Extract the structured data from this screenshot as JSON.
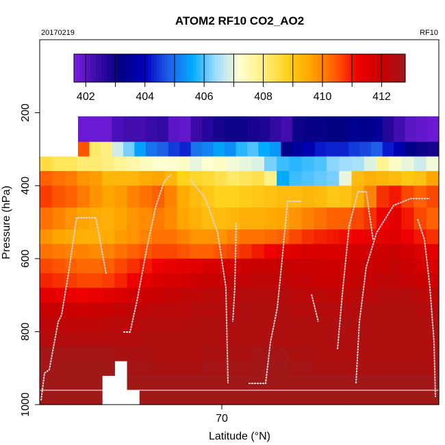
{
  "chart_data": {
    "type": "heatmap",
    "title": "ATOM2 RF10 CO2_AO2",
    "subtitle_left": "20170219",
    "subtitle_right": "RF10",
    "xlabel": "Latitude (°N)",
    "ylabel": "Pressure (hPa)",
    "x_ticks": [
      70
    ],
    "y_ticks": [
      200,
      400,
      600,
      800,
      1000
    ],
    "ylim": [
      1000,
      0
    ],
    "colorbar": {
      "ticks": [
        402,
        404,
        406,
        408,
        410,
        412
      ],
      "range": [
        401.6,
        412.8
      ],
      "colors": [
        "#7a1fe0",
        "#3a0aa8",
        "#000080",
        "#0000c0",
        "#1f5fe8",
        "#00aaff",
        "#9fdcff",
        "#ffffd0",
        "#fff080",
        "#ffd21e",
        "#ffa500",
        "#ff6000",
        "#ee0000",
        "#c80000",
        "#a01818"
      ]
    },
    "grid": false,
    "rows": [
      {
        "p": [
          210,
          280
        ],
        "vals": [
          401.8,
          401.8,
          401.8,
          402.2,
          402.3,
          402.3,
          402.4,
          402.5,
          402.0,
          401.9,
          402.4,
          402.7,
          402.9,
          403.0,
          403.0,
          402.9,
          402.8,
          402.5,
          402.3,
          403.0,
          403.1,
          403.1,
          403.2,
          403.2,
          403.4,
          403.3,
          403.5,
          402.7,
          402.3,
          402.0,
          401.9,
          401.8
        ]
      },
      {
        "p": [
          280,
          320
        ],
        "vals": [
          410.5,
          408.2,
          408.0,
          406.8,
          406.2,
          405.5,
          405.0,
          404.8,
          404.5,
          404.3,
          405.0,
          405.2,
          405.5,
          405.3,
          405.8,
          406.0,
          405.6,
          405.4,
          403.3,
          403.6,
          403.8,
          404.2,
          404.3,
          404.3,
          404.5,
          404.6,
          404.8,
          404.2,
          403.8,
          403.3,
          403.0,
          402.9
        ]
      },
      {
        "p": [
          320,
          360
        ],
        "vals": [
          408.5,
          408.3,
          408.3,
          408.1,
          408.1,
          408.0,
          407.8,
          407.6,
          407.4,
          407.2,
          407.2,
          407.3,
          407.0,
          407.2,
          407.3,
          407.1,
          407.0,
          406.9,
          406.2,
          405.9,
          405.8,
          405.9,
          406.0,
          406.3,
          406.4,
          406.5,
          406.9,
          407.8,
          407.3,
          407.0,
          406.8,
          407.1
        ]
      },
      {
        "p": [
          360,
          400
        ],
        "vals": [
          410.4,
          410.2,
          410.1,
          409.8,
          409.7,
          409.3,
          409.3,
          409.3,
          409.5,
          409.6,
          409.3,
          408.8,
          408.7,
          408.6,
          408.4,
          408.2,
          408.3,
          408.4,
          407.9,
          405.6,
          405.9,
          406.0,
          406.1,
          406.2,
          407.0,
          409.2,
          409.4,
          409.3,
          409.2,
          409.0,
          409.1,
          409.6
        ]
      },
      {
        "p": [
          400,
          460
        ],
        "vals": [
          410.7,
          410.5,
          410.4,
          410.1,
          409.8,
          409.6,
          409.7,
          410.0,
          410.2,
          410.4,
          410.0,
          409.5,
          409.2,
          409.0,
          408.8,
          408.8,
          408.9,
          409.0,
          409.1,
          409.2,
          409.2,
          409.3,
          409.2,
          409.0,
          409.1,
          409.4,
          410.0,
          410.8,
          411.0,
          410.6,
          410.4,
          410.6
        ]
      },
      {
        "p": [
          460,
          520
        ],
        "vals": [
          410.2,
          410.0,
          409.8,
          409.6,
          409.5,
          409.4,
          409.6,
          409.8,
          409.9,
          410.1,
          409.9,
          409.6,
          409.4,
          409.2,
          409.2,
          409.3,
          409.4,
          409.4,
          409.5,
          409.6,
          409.8,
          410.0,
          410.2,
          410.4,
          410.4,
          410.6,
          410.8,
          411.2,
          411.4,
          411.0,
          410.6,
          410.4
        ]
      },
      {
        "p": [
          520,
          560
        ],
        "vals": [
          409.8,
          409.6,
          409.5,
          409.4,
          409.4,
          409.5,
          409.7,
          409.8,
          410.0,
          410.2,
          410.2,
          410.0,
          409.8,
          409.8,
          409.8,
          410.0,
          410.2,
          410.2,
          410.3,
          410.4,
          410.6,
          410.8,
          410.9,
          411.0,
          411.1,
          411.2,
          411.3,
          411.4,
          411.5,
          411.2,
          411.0,
          410.8
        ]
      },
      {
        "p": [
          560,
          600
        ],
        "vals": [
          410.2,
          410.1,
          410.0,
          410.0,
          409.9,
          410.0,
          410.2,
          410.4,
          410.5,
          410.6,
          410.6,
          410.5,
          410.4,
          410.4,
          410.5,
          410.6,
          410.8,
          411.0,
          411.2,
          411.4,
          411.5,
          411.6,
          411.6,
          411.6,
          411.7,
          411.8,
          411.8,
          411.9,
          412.0,
          411.8,
          411.6,
          411.4
        ]
      },
      {
        "p": [
          600,
          640
        ],
        "vals": [
          410.6,
          410.5,
          410.4,
          410.3,
          410.3,
          410.4,
          410.6,
          410.8,
          411.0,
          411.2,
          411.3,
          411.4,
          411.5,
          411.6,
          411.7,
          411.8,
          411.9,
          412.0,
          412.0,
          412.1,
          412.0,
          412.0,
          412.0,
          411.9,
          411.9,
          412.0,
          412.0,
          412.0,
          412.1,
          412.0,
          411.8,
          411.6
        ]
      },
      {
        "p": [
          640,
          680
        ],
        "vals": [
          410.9,
          410.8,
          410.7,
          410.6,
          410.6,
          410.7,
          410.9,
          411.2,
          411.4,
          411.6,
          411.7,
          411.8,
          411.9,
          412.0,
          412.0,
          412.1,
          412.1,
          412.2,
          412.2,
          412.2,
          412.1,
          412.1,
          412.0,
          412.0,
          412.0,
          412.1,
          412.1,
          412.2,
          412.2,
          412.1,
          412.0,
          411.9
        ]
      },
      {
        "p": [
          680,
          720
        ],
        "vals": [
          411.4,
          411.3,
          411.3,
          411.2,
          411.3,
          411.4,
          411.6,
          411.8,
          411.9,
          412.0,
          412.1,
          412.2,
          412.2,
          412.3,
          412.3,
          412.3,
          412.4,
          412.4,
          412.4,
          412.4,
          412.3,
          412.3,
          412.3,
          412.2,
          412.2,
          412.3,
          412.3,
          412.4,
          412.4,
          412.4,
          412.3,
          412.2
        ]
      },
      {
        "p": [
          720,
          760
        ],
        "vals": [
          412.0,
          412.0,
          411.9,
          411.9,
          412.0,
          412.0,
          412.1,
          412.2,
          412.2,
          412.3,
          412.3,
          412.3,
          412.4,
          412.4,
          412.4,
          412.4,
          412.5,
          412.5,
          412.5,
          412.5,
          412.4,
          412.4,
          412.4,
          412.4,
          412.4,
          412.4,
          412.5,
          412.5,
          412.5,
          412.5,
          412.4,
          412.4
        ]
      },
      {
        "p": [
          760,
          800
        ],
        "vals": [
          412.2,
          412.2,
          412.2,
          412.2,
          412.2,
          412.3,
          412.3,
          412.3,
          412.4,
          412.4,
          412.4,
          412.4,
          412.5,
          412.5,
          412.5,
          412.5,
          412.5,
          412.5,
          412.5,
          412.5,
          412.5,
          412.5,
          412.5,
          412.5,
          412.5,
          412.5,
          412.5,
          412.5,
          412.5,
          412.5,
          412.5,
          412.5
        ]
      },
      {
        "p": [
          800,
          840
        ],
        "vals": [
          412.4,
          412.4,
          412.4,
          412.4,
          412.4,
          412.4,
          412.4,
          412.4,
          412.5,
          412.5,
          412.5,
          412.5,
          412.5,
          412.5,
          412.5,
          412.5,
          412.5,
          412.5,
          412.5,
          412.5,
          412.5,
          412.5,
          412.5,
          412.5,
          412.5,
          412.5,
          412.5,
          412.5,
          412.5,
          412.5,
          412.5,
          412.5
        ]
      },
      {
        "p": [
          840,
          880
        ],
        "vals": [
          412.7,
          412.7,
          412.7,
          412.7,
          412.7,
          412.7,
          412.6,
          412.6,
          412.6,
          412.5,
          412.5,
          412.5,
          412.5,
          412.6,
          412.6,
          412.6,
          412.6,
          412.7,
          412.7,
          412.7,
          412.6,
          412.6,
          412.5,
          412.5,
          412.5,
          412.5,
          412.5,
          412.5,
          412.5,
          412.5,
          412.5,
          412.5
        ]
      },
      {
        "p": [
          880,
          920
        ],
        "vals": [
          412.8,
          412.8,
          412.8,
          412.8,
          412.8,
          412.8,
          null,
          412.7,
          412.7,
          412.6,
          412.6,
          412.6,
          412.6,
          412.7,
          412.7,
          412.7,
          412.7,
          412.8,
          412.8,
          412.8,
          412.7,
          412.7,
          412.6,
          412.6,
          412.6,
          412.6,
          412.6,
          412.6,
          412.6,
          412.6,
          412.6,
          412.6
        ]
      },
      {
        "p": [
          920,
          960
        ],
        "vals": [
          412.8,
          412.8,
          412.8,
          412.8,
          412.8,
          null,
          null,
          412.8,
          412.8,
          412.8,
          412.8,
          412.8,
          412.8,
          412.8,
          412.8,
          412.8,
          412.8,
          412.8,
          412.8,
          412.8,
          412.8,
          412.8,
          412.8,
          412.8,
          412.8,
          412.8,
          412.8,
          412.8,
          412.8,
          412.8,
          412.8,
          412.8
        ]
      },
      {
        "p": [
          960,
          1000
        ],
        "vals": [
          412.8,
          412.8,
          412.8,
          412.8,
          412.8,
          null,
          null,
          null,
          412.8,
          412.8,
          412.8,
          412.8,
          412.8,
          412.8,
          412.8,
          412.8,
          412.8,
          412.8,
          412.8,
          412.8,
          412.8,
          412.8,
          412.8,
          412.8,
          412.8,
          412.8,
          412.8,
          412.8,
          412.8,
          412.8,
          412.8,
          412.8
        ]
      }
    ]
  }
}
